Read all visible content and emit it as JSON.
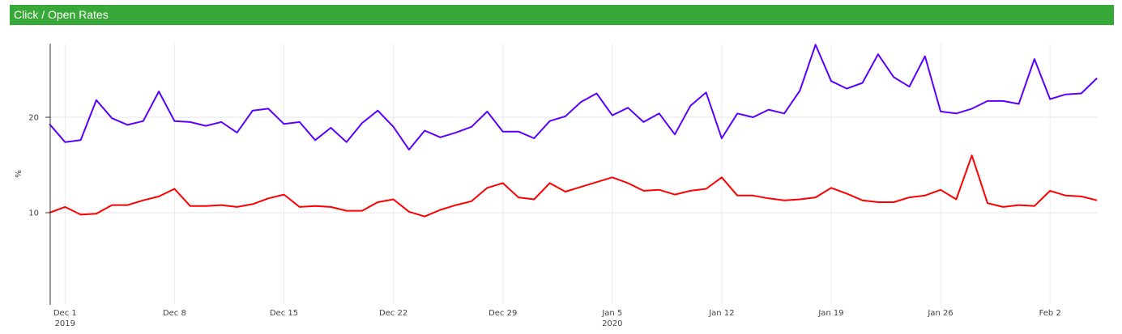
{
  "panel": {
    "title": "Click / Open Rates"
  },
  "colors": {
    "header": "#38a838",
    "series_top": "#5a00ff",
    "series_bottom": "#ff0000",
    "grid": "#e6e6e6",
    "axis": "#333333"
  },
  "chart_data": {
    "type": "line",
    "title": "Click / Open Rates",
    "xlabel": "",
    "ylabel": "%",
    "x_start": "2019-11-30",
    "x_end": "2020-02-05",
    "x_interval": "daily",
    "ylim": [
      0.3,
      27.7
    ],
    "y_ticks": [
      10,
      20
    ],
    "x_ticks": [
      {
        "label": "Dec 1",
        "sub": "2019",
        "day": 1
      },
      {
        "label": "Dec 8",
        "sub": "",
        "day": 8
      },
      {
        "label": "Dec 15",
        "sub": "",
        "day": 15
      },
      {
        "label": "Dec 22",
        "sub": "",
        "day": 22
      },
      {
        "label": "Dec 29",
        "sub": "",
        "day": 29
      },
      {
        "label": "Jan 5",
        "sub": "2020",
        "day": 36
      },
      {
        "label": "Jan 12",
        "sub": "",
        "day": 43
      },
      {
        "label": "Jan 19",
        "sub": "",
        "day": 50
      },
      {
        "label": "Jan 26",
        "sub": "",
        "day": 57
      },
      {
        "label": "Feb 2",
        "sub": "",
        "day": 64
      }
    ],
    "grid": true,
    "legend": "none",
    "series": [
      {
        "key": "top",
        "color": "#5a00ff",
        "values": [
          19.3,
          17.4,
          17.6,
          21.8,
          19.9,
          19.2,
          19.6,
          22.7,
          19.6,
          19.5,
          19.1,
          19.5,
          18.4,
          20.7,
          20.9,
          19.3,
          19.5,
          17.6,
          18.9,
          17.4,
          19.4,
          20.7,
          19.0,
          16.6,
          18.6,
          17.9,
          18.4,
          19.0,
          20.6,
          18.5,
          18.5,
          17.8,
          19.6,
          20.1,
          21.6,
          22.5,
          20.2,
          21.0,
          19.5,
          20.4,
          18.2,
          21.2,
          22.6,
          17.8,
          20.4,
          20.0,
          20.8,
          20.4,
          22.8,
          27.6,
          23.8,
          23.0,
          23.6,
          26.6,
          24.2,
          23.2,
          26.4,
          20.6,
          20.4,
          20.9,
          21.7,
          21.7,
          21.4,
          26.1,
          21.9,
          22.4,
          22.5,
          24.1
        ]
      },
      {
        "key": "bottom",
        "color": "#ff0000",
        "values": [
          10.0,
          10.6,
          9.8,
          9.9,
          10.8,
          10.8,
          11.3,
          11.7,
          12.5,
          10.7,
          10.7,
          10.8,
          10.6,
          10.9,
          11.5,
          11.9,
          10.6,
          10.7,
          10.6,
          10.2,
          10.2,
          11.1,
          11.4,
          10.1,
          9.6,
          10.3,
          10.8,
          11.2,
          12.6,
          13.1,
          11.6,
          11.4,
          13.1,
          12.2,
          12.7,
          13.2,
          13.7,
          13.1,
          12.3,
          12.4,
          11.9,
          12.3,
          12.5,
          13.7,
          11.8,
          11.8,
          11.5,
          11.3,
          11.4,
          11.6,
          12.6,
          12.0,
          11.3,
          11.1,
          11.1,
          11.6,
          11.8,
          12.4,
          11.4,
          16.0,
          11.0,
          10.6,
          10.8,
          10.7,
          12.3,
          11.8,
          11.7,
          11.3
        ]
      }
    ]
  }
}
